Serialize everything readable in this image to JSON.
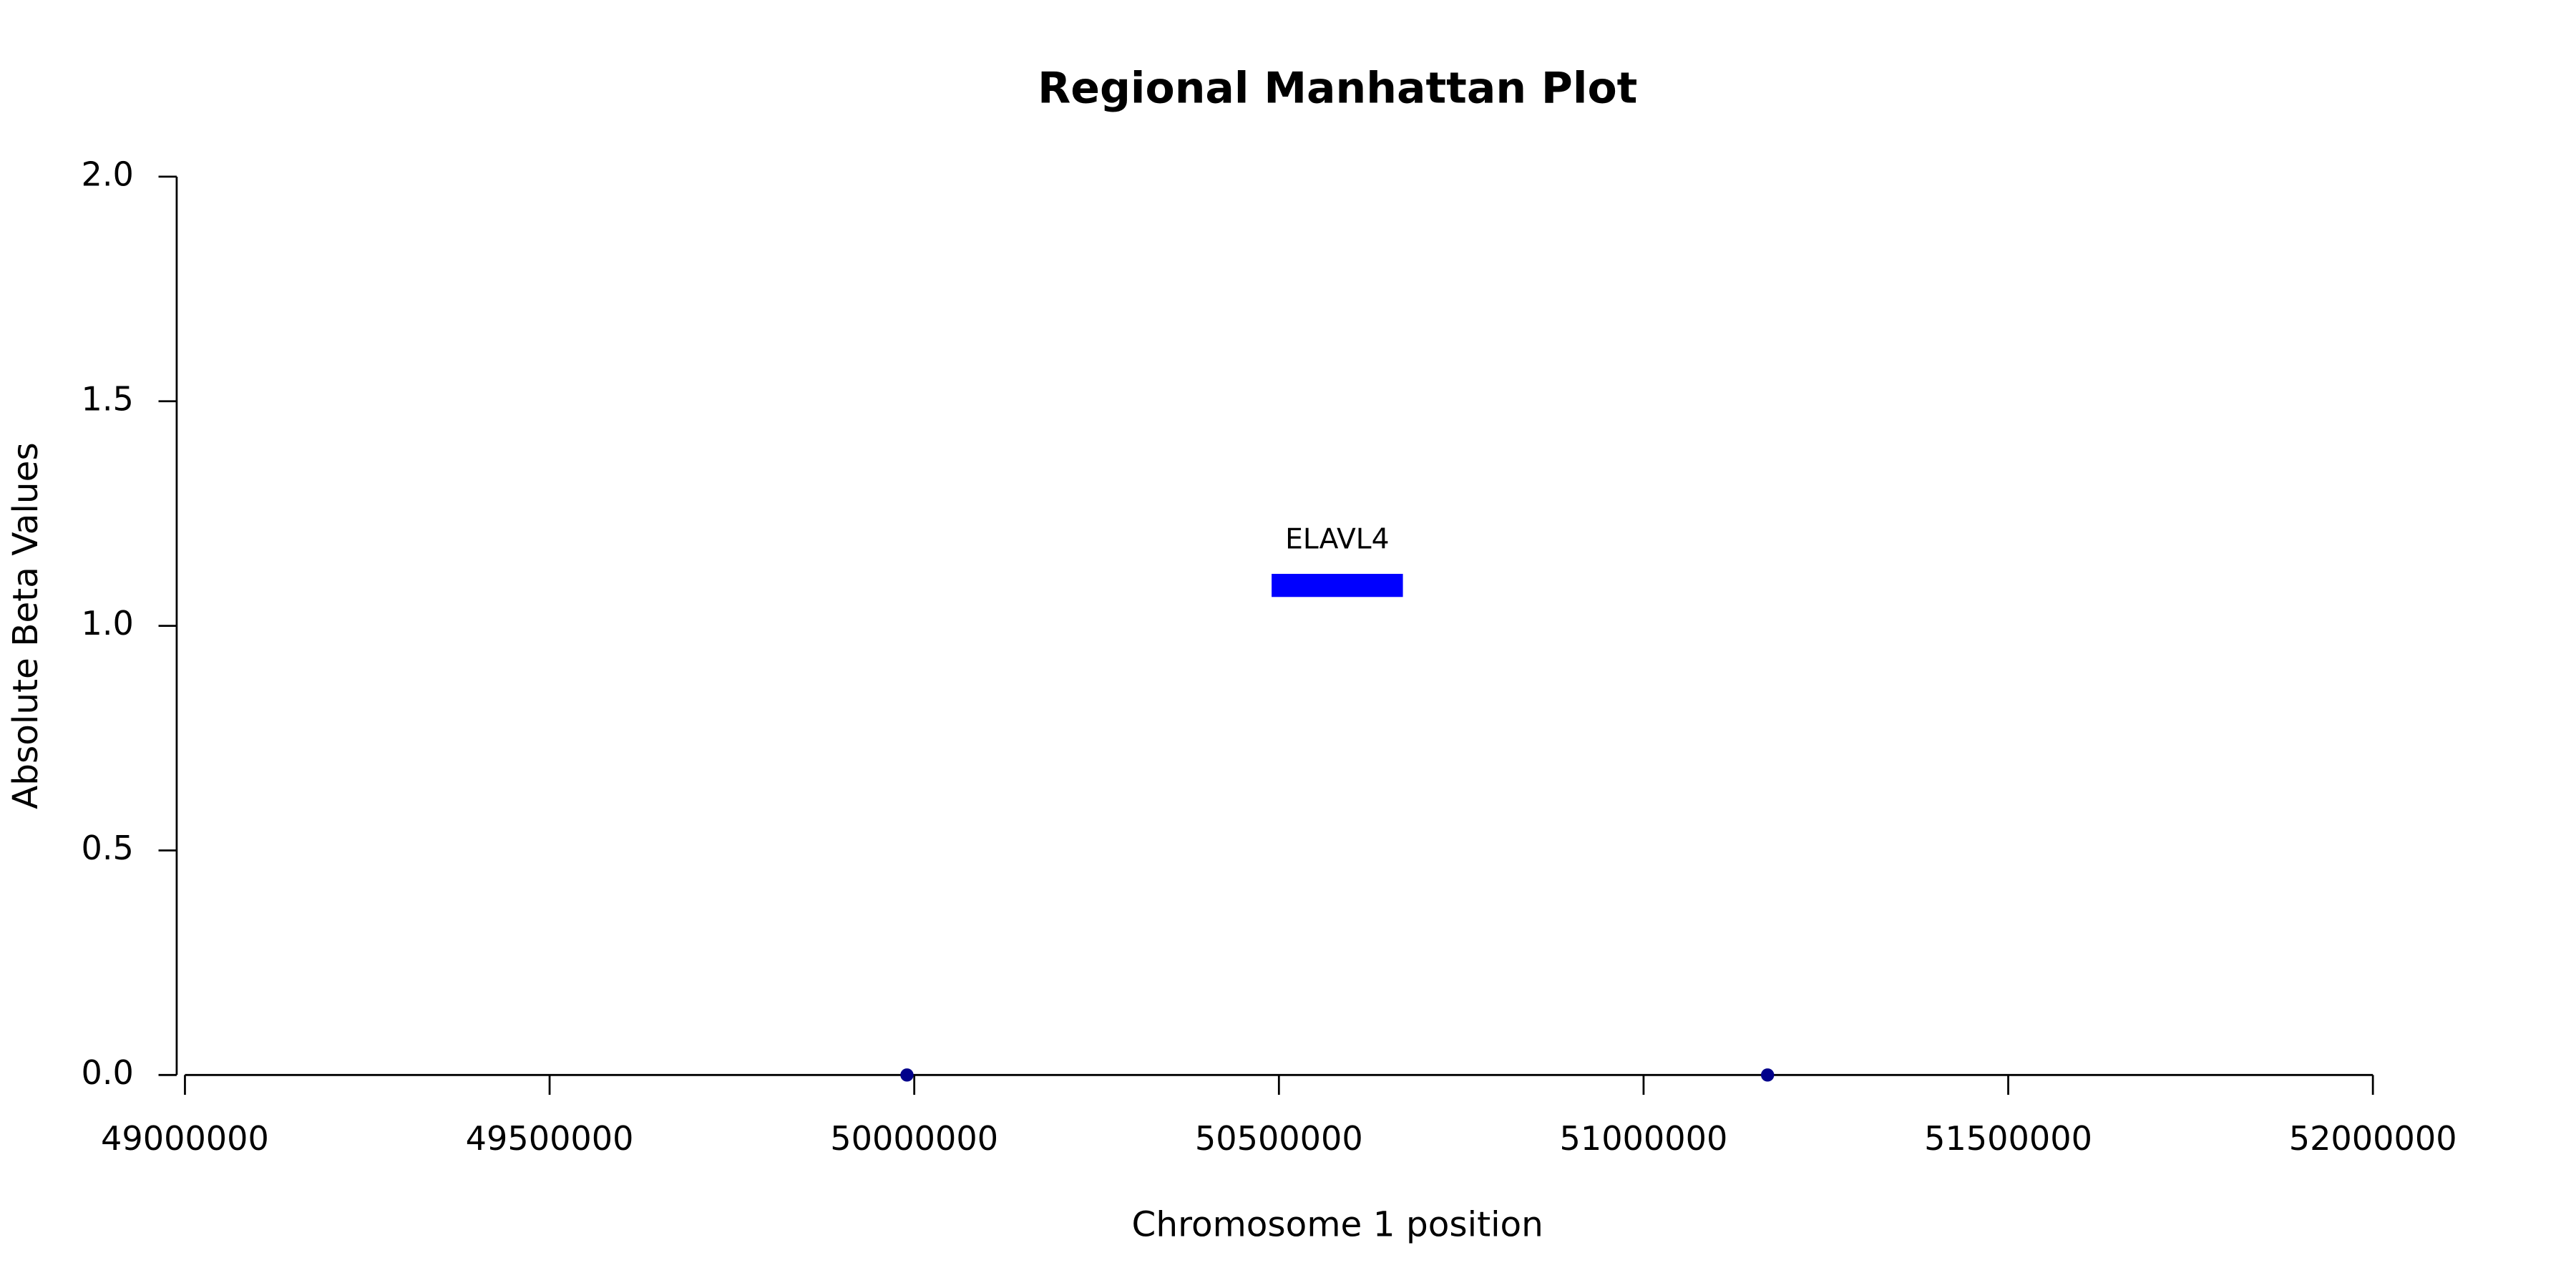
{
  "chart_data": {
    "type": "scatter",
    "title": "Regional Manhattan Plot",
    "x_label": "Chromosome 1 position",
    "y_label": "Absolute Beta Values",
    "x": [
      49990000,
      51170000
    ],
    "values": [
      0,
      0
    ],
    "color": "#00008b",
    "genes": [
      {
        "name": "ELAVL4",
        "start": 50490000,
        "end": 50670000,
        "y": 1.09,
        "color": "#0000ff"
      }
    ],
    "xlim": [
      49000000,
      52000000
    ],
    "xticks": [
      49000000,
      49500000,
      50000000,
      50500000,
      51000000,
      51500000,
      52000000
    ],
    "ylim": [
      0,
      2
    ],
    "yticks": [
      {
        "value": 0,
        "label": "0.0"
      },
      {
        "value": 0.5,
        "label": "0.5"
      },
      {
        "value": 1,
        "label": "1.0"
      },
      {
        "value": 1.5,
        "label": "1.5"
      },
      {
        "value": 2,
        "label": "2.0"
      }
    ],
    "grid": false
  }
}
